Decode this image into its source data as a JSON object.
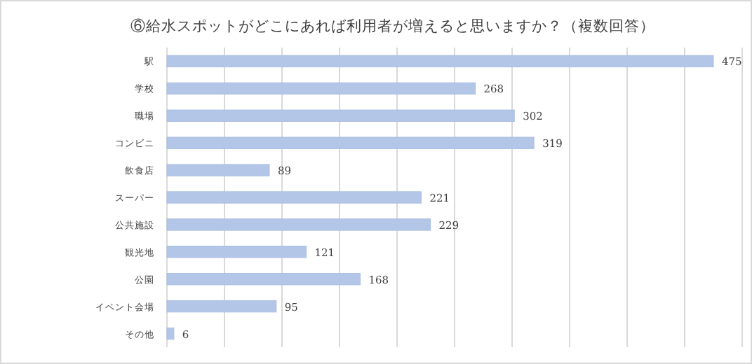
{
  "chart_data": {
    "type": "bar",
    "orientation": "horizontal",
    "title": "⑥給水スポットがどこにあれば利用者が増えると思いますか？（複数回答）",
    "categories": [
      "駅",
      "学校",
      "職場",
      "コンビニ",
      "飲食店",
      "スーパー",
      "公共施設",
      "観光地",
      "公園",
      "イベント会場",
      "その他"
    ],
    "values": [
      475,
      268,
      302,
      319,
      89,
      221,
      229,
      121,
      168,
      95,
      6
    ],
    "color": "#b4c6e7",
    "data_labels": true,
    "grid": "x",
    "tick_labels": "y",
    "xlim": [
      0,
      500
    ],
    "xticks": [
      {
        "value": 0,
        "label": null
      },
      {
        "value": 50,
        "label": null
      },
      {
        "value": 100,
        "label": null
      },
      {
        "value": 150,
        "label": null
      },
      {
        "value": 200,
        "label": null
      },
      {
        "value": 250,
        "label": null
      },
      {
        "value": 300,
        "label": null
      },
      {
        "value": 350,
        "label": null
      },
      {
        "value": 400,
        "label": null
      },
      {
        "value": 450,
        "label": null
      },
      {
        "value": 500,
        "label": null
      }
    ]
  }
}
